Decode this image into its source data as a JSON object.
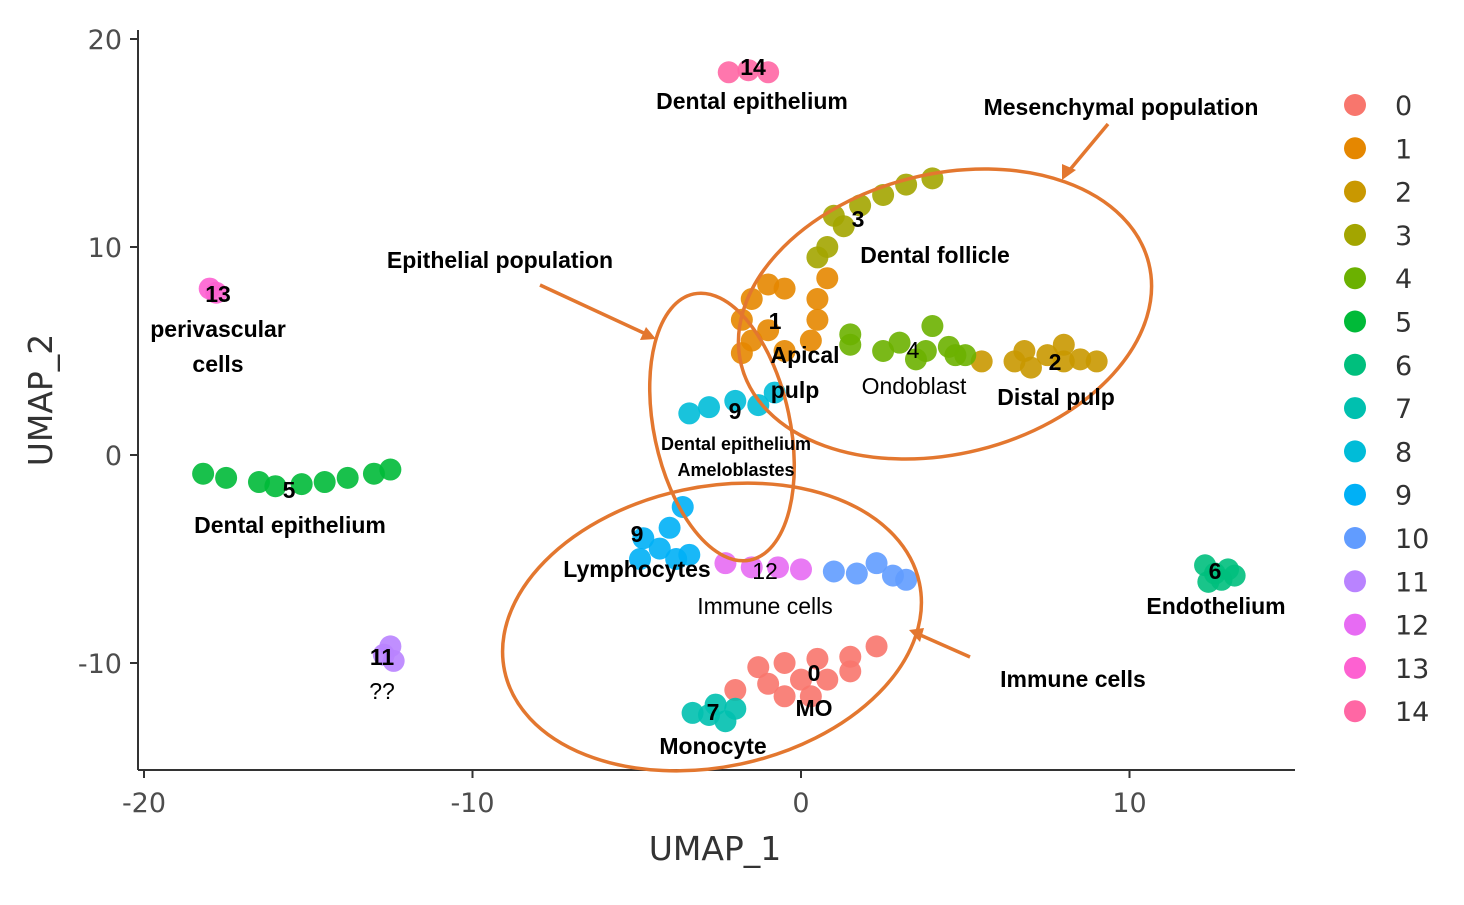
{
  "chart_data": {
    "type": "scatter",
    "title": "",
    "xlabel": "UMAP_1",
    "ylabel": "UMAP_2",
    "xlim": [
      -20,
      15
    ],
    "ylim": [
      -15,
      20.5
    ],
    "xticks": [
      -20,
      -10,
      0,
      10
    ],
    "yticks": [
      -10,
      0,
      10,
      20
    ],
    "grid": false,
    "legend_position": "right",
    "legend": [
      "0",
      "1",
      "2",
      "3",
      "4",
      "5",
      "6",
      "7",
      "8",
      "9",
      "10",
      "11",
      "12",
      "13",
      "14"
    ],
    "colors": [
      "#F8766D",
      "#E58700",
      "#C99800",
      "#A3A500",
      "#6BB100",
      "#00BA38",
      "#00BF7D",
      "#00C0AF",
      "#00BCD8",
      "#00B0F6",
      "#619CFF",
      "#B983FF",
      "#E76BF3",
      "#FD61D1",
      "#FF67A4"
    ],
    "clusters": [
      {
        "cluster": "0",
        "points": [
          [
            -1.3,
            -10.2
          ],
          [
            -0.5,
            -10.0
          ],
          [
            0.5,
            -9.8
          ],
          [
            1.5,
            -9.7
          ],
          [
            2.3,
            -9.2
          ],
          [
            0.0,
            -10.8
          ],
          [
            -1.0,
            -11.0
          ],
          [
            -2.0,
            -11.3
          ],
          [
            0.8,
            -10.8
          ],
          [
            1.5,
            -10.4
          ],
          [
            -0.5,
            -11.6
          ],
          [
            0.3,
            -11.6
          ]
        ]
      },
      {
        "cluster": "1",
        "points": [
          [
            -1.8,
            6.5
          ],
          [
            -1.5,
            7.5
          ],
          [
            -1.0,
            8.2
          ],
          [
            -0.5,
            8.0
          ],
          [
            0.5,
            7.5
          ],
          [
            -1.5,
            5.5
          ],
          [
            -1.8,
            4.9
          ],
          [
            -0.5,
            5.0
          ],
          [
            0.3,
            5.5
          ],
          [
            0.5,
            6.5
          ],
          [
            -1.0,
            6.0
          ],
          [
            0.8,
            8.5
          ]
        ]
      },
      {
        "cluster": "2",
        "points": [
          [
            5.5,
            4.5
          ],
          [
            6.5,
            4.5
          ],
          [
            7.0,
            4.2
          ],
          [
            7.5,
            4.8
          ],
          [
            8.0,
            4.5
          ],
          [
            8.5,
            4.6
          ],
          [
            9.0,
            4.5
          ],
          [
            6.8,
            5.0
          ],
          [
            8.0,
            5.3
          ]
        ]
      },
      {
        "cluster": "3",
        "points": [
          [
            0.8,
            10.0
          ],
          [
            1.3,
            11.0
          ],
          [
            1.8,
            12.0
          ],
          [
            2.5,
            12.5
          ],
          [
            3.2,
            13.0
          ],
          [
            4.0,
            13.3
          ],
          [
            1.0,
            11.5
          ],
          [
            0.5,
            9.5
          ]
        ]
      },
      {
        "cluster": "4",
        "points": [
          [
            1.5,
            5.3
          ],
          [
            2.5,
            5.0
          ],
          [
            3.0,
            5.4
          ],
          [
            3.8,
            5.0
          ],
          [
            4.5,
            5.2
          ],
          [
            5.0,
            4.8
          ],
          [
            4.0,
            6.2
          ],
          [
            1.5,
            5.8
          ],
          [
            3.5,
            4.6
          ],
          [
            4.7,
            4.8
          ]
        ]
      },
      {
        "cluster": "5",
        "points": [
          [
            -18.2,
            -0.9
          ],
          [
            -17.5,
            -1.1
          ],
          [
            -16.5,
            -1.3
          ],
          [
            -16.0,
            -1.5
          ],
          [
            -15.2,
            -1.4
          ],
          [
            -14.5,
            -1.3
          ],
          [
            -13.8,
            -1.1
          ],
          [
            -13.0,
            -0.9
          ],
          [
            -12.5,
            -0.7
          ]
        ]
      },
      {
        "cluster": "6",
        "points": [
          [
            12.3,
            -5.3
          ],
          [
            12.6,
            -5.7
          ],
          [
            12.8,
            -6.0
          ],
          [
            13.0,
            -5.5
          ],
          [
            12.4,
            -6.1
          ],
          [
            13.2,
            -5.8
          ]
        ]
      },
      {
        "cluster": "7",
        "points": [
          [
            -3.3,
            -12.4
          ],
          [
            -2.8,
            -12.5
          ],
          [
            -2.3,
            -12.8
          ],
          [
            -2.0,
            -12.2
          ],
          [
            -2.6,
            -12.0
          ]
        ]
      },
      {
        "cluster": "8",
        "points": [
          [
            -3.4,
            2.0
          ],
          [
            -2.8,
            2.3
          ],
          [
            -2.0,
            2.6
          ],
          [
            -1.3,
            2.4
          ],
          [
            -0.8,
            3.0
          ]
        ]
      },
      {
        "cluster": "9",
        "points": [
          [
            -4.8,
            -4.0
          ],
          [
            -4.3,
            -4.5
          ],
          [
            -3.8,
            -5.0
          ],
          [
            -3.4,
            -4.8
          ],
          [
            -4.9,
            -5.0
          ],
          [
            -4.0,
            -3.5
          ],
          [
            -3.6,
            -2.5
          ]
        ]
      },
      {
        "cluster": "10",
        "points": [
          [
            1.0,
            -5.6
          ],
          [
            1.7,
            -5.7
          ],
          [
            2.3,
            -5.2
          ],
          [
            2.8,
            -5.8
          ],
          [
            3.2,
            -6.0
          ]
        ]
      },
      {
        "cluster": "11",
        "points": [
          [
            -12.7,
            -9.6
          ],
          [
            -12.4,
            -9.9
          ],
          [
            -12.5,
            -9.2
          ]
        ]
      },
      {
        "cluster": "12",
        "points": [
          [
            -2.3,
            -5.2
          ],
          [
            -1.5,
            -5.4
          ],
          [
            -0.7,
            -5.4
          ],
          [
            0.0,
            -5.5
          ]
        ]
      },
      {
        "cluster": "13",
        "points": [
          [
            -18.0,
            8.0
          ],
          [
            -17.8,
            7.8
          ]
        ]
      },
      {
        "cluster": "14",
        "points": [
          [
            -2.2,
            18.4
          ],
          [
            -1.6,
            18.5
          ],
          [
            -1.0,
            18.4
          ]
        ]
      }
    ],
    "annotations": [
      {
        "text": "14",
        "bold": true
      },
      {
        "text": "Dental epithelium",
        "bold": true
      },
      {
        "text": "Mesenchymal population",
        "bold": true
      },
      {
        "text": "3",
        "bold": true
      },
      {
        "text": "Dental follicle",
        "bold": true
      },
      {
        "text": "Epithelial population",
        "bold": true
      },
      {
        "text": "13",
        "bold": true
      },
      {
        "text": "perivascular",
        "bold": true
      },
      {
        "text": "cells",
        "bold": true
      },
      {
        "text": "1",
        "bold": true
      },
      {
        "text": "Apical",
        "bold": true
      },
      {
        "text": "pulp",
        "bold": true
      },
      {
        "text": "4",
        "bold": false
      },
      {
        "text": "Ondoblast",
        "bold": false
      },
      {
        "text": "2",
        "bold": true
      },
      {
        "text": "Distal pulp",
        "bold": true
      },
      {
        "text": "9",
        "bold": true
      },
      {
        "text": "Dental epithelium",
        "bold": true
      },
      {
        "text": "Ameloblastes",
        "bold": true
      },
      {
        "text": "5",
        "bold": true
      },
      {
        "text": "Dental epithelium",
        "bold": true
      },
      {
        "text": "9",
        "bold": true
      },
      {
        "text": "Lymphocytes",
        "bold": true
      },
      {
        "text": "12",
        "bold": false
      },
      {
        "text": "Immune cells",
        "bold": false
      },
      {
        "text": "6",
        "bold": true
      },
      {
        "text": "Endothelium",
        "bold": true
      },
      {
        "text": "11",
        "bold": true
      },
      {
        "text": "??",
        "bold": false
      },
      {
        "text": "Immune cells",
        "bold": true
      },
      {
        "text": "0",
        "bold": true
      },
      {
        "text": "MO",
        "bold": true
      },
      {
        "text": "7",
        "bold": true
      },
      {
        "text": "Monocyte",
        "bold": true
      }
    ]
  }
}
